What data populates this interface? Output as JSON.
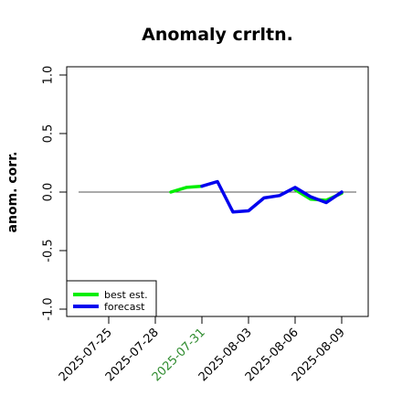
{
  "chart_data": {
    "type": "line",
    "title": "Anomaly crrltn.",
    "xlabel": "",
    "ylabel": "anom. corr.",
    "ylim": [
      -1.0,
      1.0
    ],
    "yticks": [
      "1.0",
      "0.5",
      "0.0",
      "-0.5",
      "-1.0"
    ],
    "reference_line": 0.0,
    "x_ticks": [
      {
        "label": "2025-07-25",
        "color": "#000000"
      },
      {
        "label": "2025-07-28",
        "color": "#000000"
      },
      {
        "label": "2025-07-31",
        "color": "#2e8b2e"
      },
      {
        "label": "2025-08-03",
        "color": "#000000"
      },
      {
        "label": "2025-08-06",
        "color": "#000000"
      },
      {
        "label": "2025-08-09",
        "color": "#000000"
      }
    ],
    "x": [
      "2025-07-29",
      "2025-07-30",
      "2025-07-31",
      "2025-08-01",
      "2025-08-02",
      "2025-08-03",
      "2025-08-04",
      "2025-08-05",
      "2025-08-06",
      "2025-08-07",
      "2025-08-08",
      "2025-08-09"
    ],
    "series": [
      {
        "name": "best est.",
        "color": "#00ee00",
        "values": [
          0.0,
          0.04,
          0.05,
          null,
          null,
          null,
          null,
          null,
          0.02,
          -0.06,
          -0.07,
          -0.01
        ]
      },
      {
        "name": "forecast",
        "color": "#0000ee",
        "values": [
          null,
          null,
          0.05,
          0.09,
          -0.17,
          -0.16,
          -0.05,
          -0.03,
          0.04,
          -0.04,
          -0.09,
          0.0
        ]
      }
    ],
    "legend_position": "bottom-left"
  }
}
